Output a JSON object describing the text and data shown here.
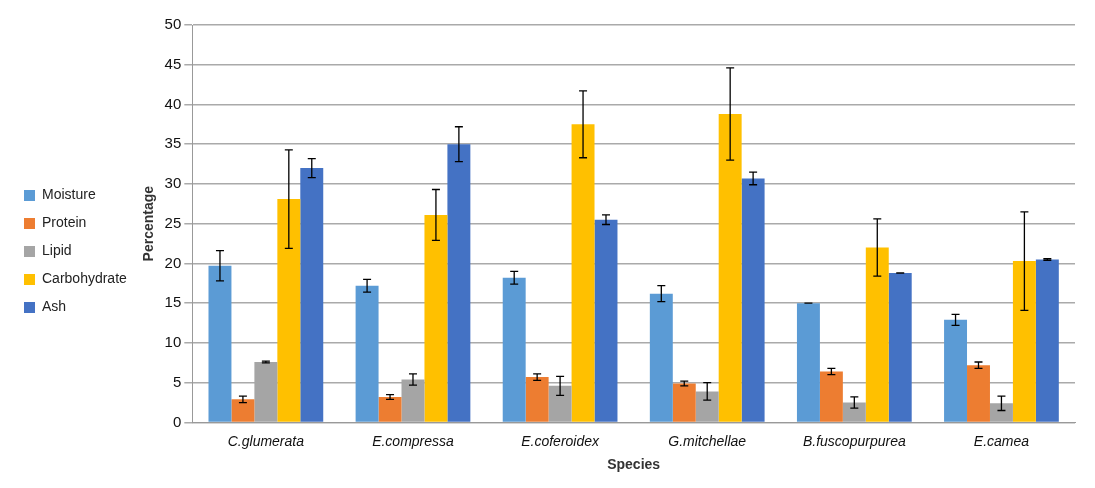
{
  "chart_data": {
    "type": "bar",
    "xlabel": "Species",
    "ylabel": "Percentage",
    "categories": [
      "C.glumerata",
      "E.compressa",
      "E.coferoidex",
      "G.mitchellae",
      "B.fuscopurpurea",
      "E.camea"
    ],
    "series": [
      {
        "name": "Moisture",
        "color": "#5b9bd5",
        "values": [
          19.7,
          17.2,
          18.2,
          16.2,
          15,
          12.9
        ],
        "errors": [
          1.9,
          0.8,
          0.8,
          1,
          0,
          0.7
        ]
      },
      {
        "name": "Protein",
        "color": "#ed7d31",
        "values": [
          2.9,
          3.2,
          5.7,
          4.9,
          6.4,
          7.2
        ],
        "errors": [
          0.4,
          0.3,
          0.4,
          0.3,
          0.4,
          0.4
        ]
      },
      {
        "name": "Lipid",
        "color": "#a5a5a5",
        "values": [
          7.6,
          5.4,
          4.6,
          3.9,
          2.5,
          2.4
        ],
        "errors": [
          0.1,
          0.7,
          1.2,
          1.1,
          0.7,
          0.9
        ]
      },
      {
        "name": "Carbohydrate",
        "color": "#ffc000",
        "values": [
          28.1,
          26.1,
          37.5,
          38.8,
          22,
          20.3
        ],
        "errors": [
          6.2,
          3.2,
          4.2,
          5.8,
          3.6,
          6.2
        ]
      },
      {
        "name": "Ash",
        "color": "#4472c4",
        "values": [
          32,
          35,
          25.5,
          30.7,
          18.8,
          20.5
        ],
        "errors": [
          1.2,
          2.2,
          0.6,
          0.8,
          0,
          0.1
        ]
      }
    ],
    "ylim": [
      0,
      50
    ],
    "yticks": [
      0,
      5,
      10,
      15,
      20,
      25,
      30,
      35,
      40,
      45,
      50
    ],
    "grid": "y",
    "legend": "left"
  }
}
